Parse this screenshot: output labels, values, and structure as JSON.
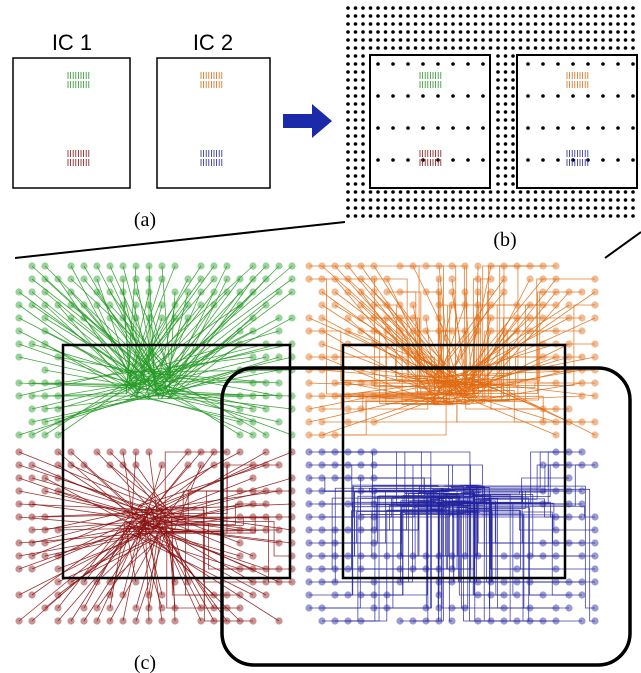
{
  "panels": {
    "a": {
      "label": "(a)",
      "ic1": "IC 1",
      "ic2": "IC 2"
    },
    "b": {
      "label": "(b)"
    },
    "c": {
      "label": "(c)"
    }
  }
}
